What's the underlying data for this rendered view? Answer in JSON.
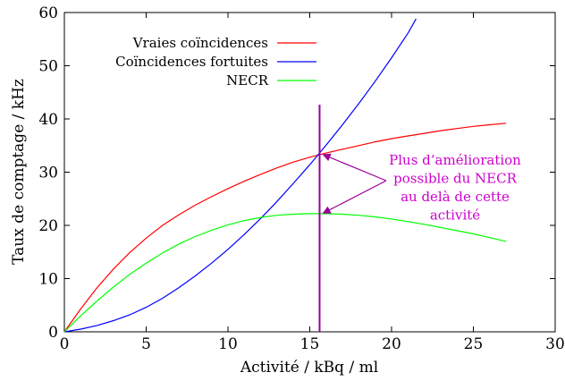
{
  "chart_data": {
    "type": "line",
    "xlabel": "Activité / kBq / ml",
    "ylabel": "Taux de comptage / kHz",
    "xlim": [
      0,
      30
    ],
    "ylim": [
      0,
      60
    ],
    "xticks": [
      0,
      5,
      10,
      15,
      20,
      25,
      30
    ],
    "yticks": [
      0,
      10,
      20,
      30,
      40,
      50,
      60
    ],
    "grid": false,
    "legend_position": "top-left",
    "series": [
      {
        "name": "Vraies coïncidences",
        "color": "#ff0000",
        "x": [
          0,
          1,
          2,
          3,
          4,
          5,
          6,
          7,
          8,
          9,
          10,
          11,
          12,
          13,
          14,
          15,
          16,
          17,
          18,
          19,
          20,
          21,
          22,
          23,
          24,
          25,
          26,
          27
        ],
        "y": [
          0,
          4.3,
          8.3,
          11.8,
          14.9,
          17.6,
          20.0,
          22.0,
          23.8,
          25.4,
          26.9,
          28.3,
          29.6,
          30.8,
          31.9,
          32.8,
          33.6,
          34.3,
          35.0,
          35.7,
          36.3,
          36.8,
          37.3,
          37.8,
          38.2,
          38.6,
          38.9,
          39.2
        ]
      },
      {
        "name": "Coïncidences fortuites",
        "color": "#0000ff",
        "x": [
          0,
          1,
          2,
          3,
          4,
          5,
          6,
          7,
          8,
          9,
          10,
          11,
          12,
          13,
          14,
          15,
          16,
          17,
          18,
          19,
          20,
          21,
          21.5
        ],
        "y": [
          0,
          0.5,
          1.2,
          2.1,
          3.2,
          4.6,
          6.3,
          8.3,
          10.5,
          12.9,
          15.5,
          18.3,
          21.3,
          24.5,
          27.9,
          31.4,
          35.1,
          38.9,
          42.9,
          47.1,
          51.5,
          56.1,
          58.8
        ]
      },
      {
        "name": "NECR",
        "color": "#00ff00",
        "x": [
          0,
          1,
          2,
          3,
          4,
          5,
          6,
          7,
          8,
          9,
          10,
          11,
          12,
          13,
          14,
          15,
          16,
          17,
          18,
          19,
          20,
          21,
          22,
          23,
          24,
          25,
          26,
          27
        ],
        "y": [
          0,
          3.0,
          5.8,
          8.4,
          10.8,
          12.9,
          14.8,
          16.5,
          17.9,
          19.1,
          20.1,
          20.9,
          21.5,
          21.9,
          22.1,
          22.2,
          22.2,
          22.1,
          21.9,
          21.6,
          21.2,
          20.7,
          20.2,
          19.6,
          19.0,
          18.4,
          17.7,
          17.0
        ]
      }
    ],
    "vline": {
      "x": 15.6,
      "color": "#990099"
    },
    "annotation": {
      "lines": [
        "Plus d’amélioration",
        "possible du NECR",
        "au delà de cette",
        "activité"
      ],
      "color": "#cc00cc",
      "arrow_color": "#990099",
      "arrow_targets": [
        [
          15.6,
          33.3
        ],
        [
          15.6,
          22.3
        ]
      ]
    }
  }
}
